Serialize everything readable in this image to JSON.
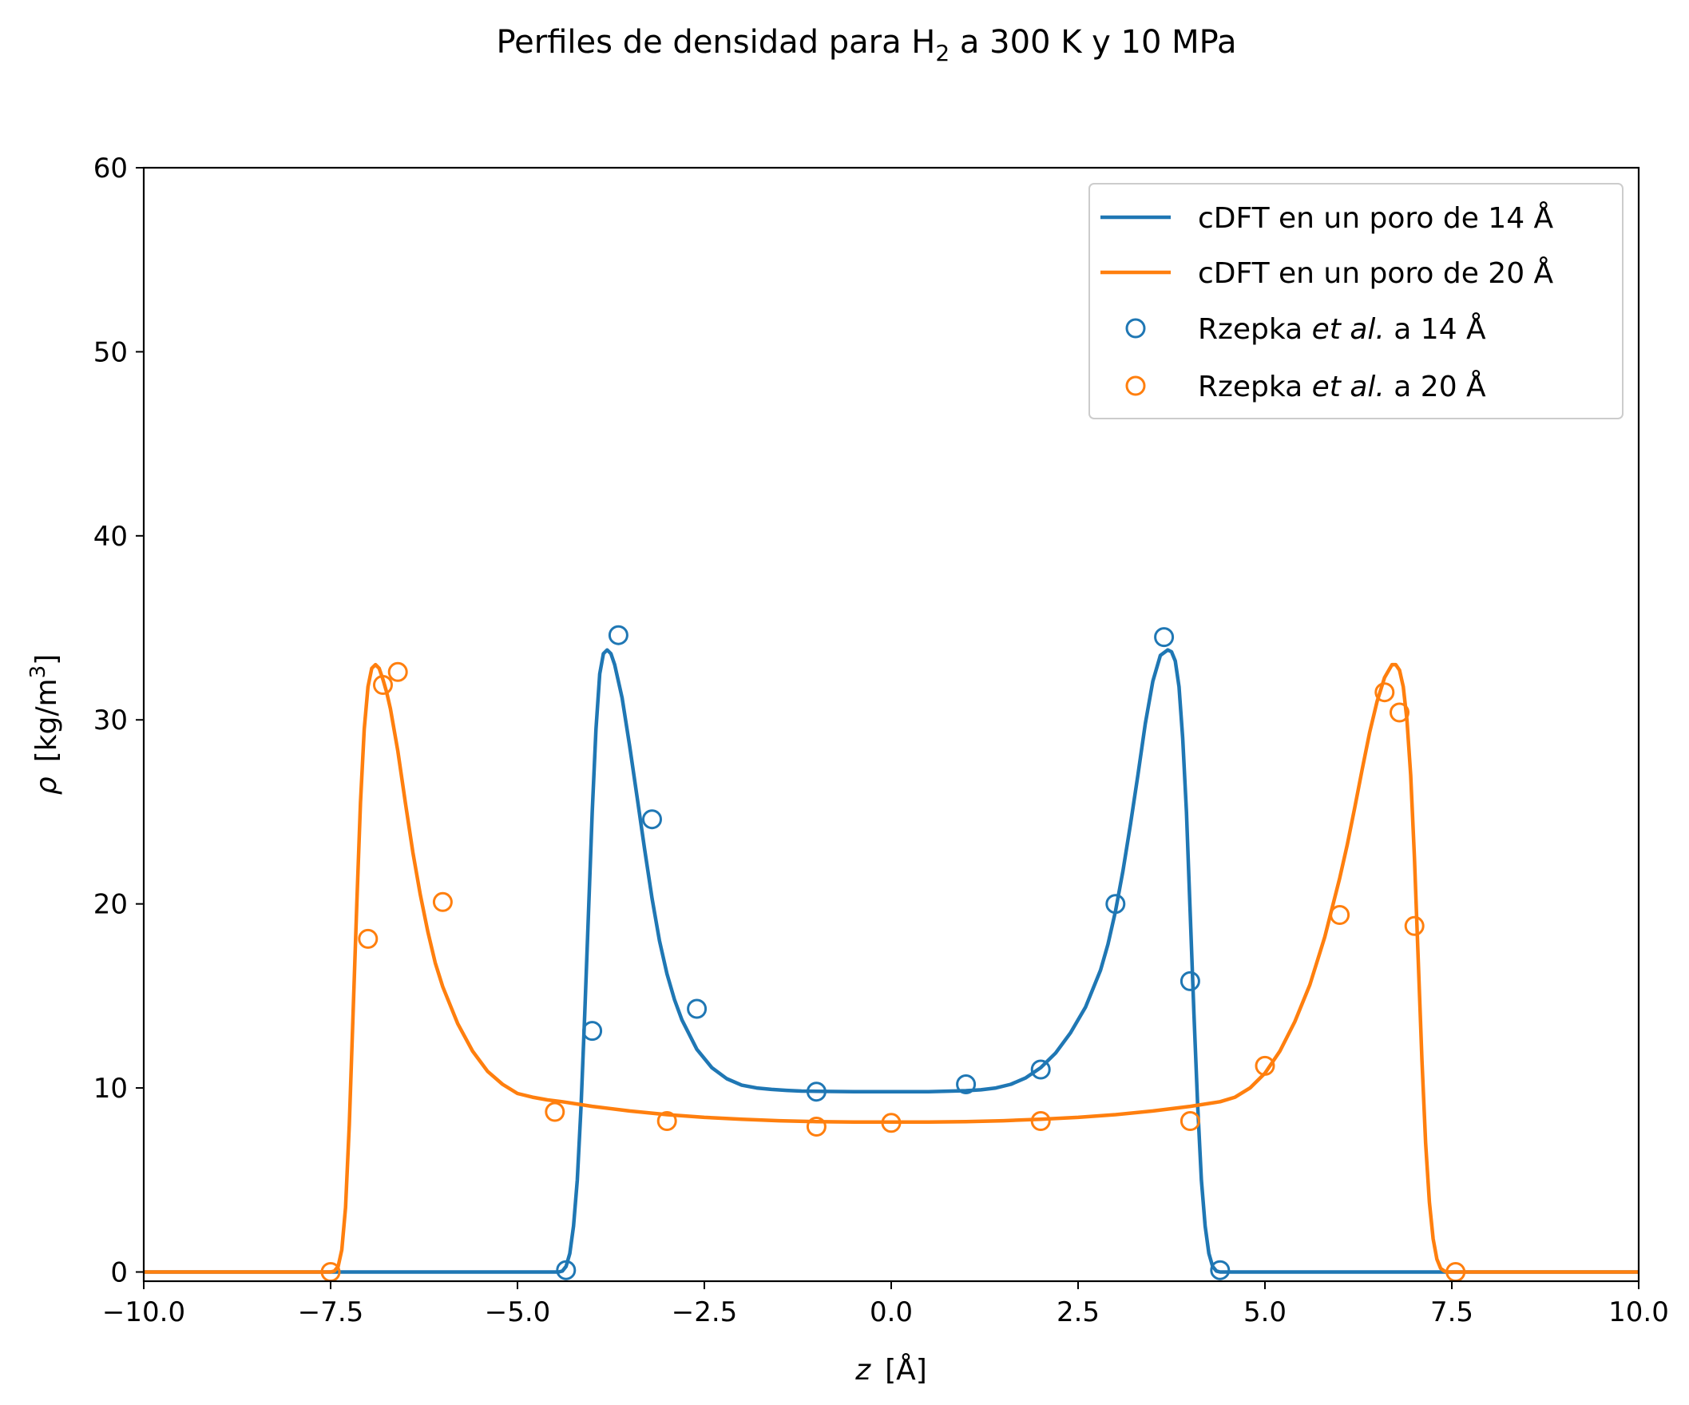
{
  "chart_data": {
    "type": "line",
    "title_main": "Perfiles de densidad para H",
    "title_sub": "2",
    "title_rest": " a 300 K y 10 MPa",
    "xlabel_var": "z",
    "xlabel_unit": "[Å]",
    "ylabel_var": "ρ",
    "ylabel_unit_a": "[kg/m",
    "ylabel_unit_sup": "3",
    "ylabel_unit_b": "]",
    "xlim": [
      -10,
      10
    ],
    "ylim": [
      -0.5,
      60
    ],
    "xticks": [
      "−10.0",
      "−7.5",
      "−5.0",
      "−2.5",
      "0.0",
      "2.5",
      "5.0",
      "7.5",
      "10.0"
    ],
    "xtick_values": [
      -10,
      -7.5,
      -5,
      -2.5,
      0,
      2.5,
      5,
      7.5,
      10
    ],
    "yticks": [
      "0",
      "10",
      "20",
      "30",
      "40",
      "50",
      "60"
    ],
    "ytick_values": [
      0,
      10,
      20,
      30,
      40,
      50,
      60
    ],
    "grid": false,
    "legend_position": "top-right",
    "series": [
      {
        "name": "cDFT en un poro de 14 Å",
        "kind": "line",
        "color": "#1f77b4",
        "x": [
          -10,
          -4.45,
          -4.4,
          -4.35,
          -4.3,
          -4.25,
          -4.2,
          -4.15,
          -4.1,
          -4.05,
          -4.0,
          -3.95,
          -3.9,
          -3.85,
          -3.8,
          -3.75,
          -3.7,
          -3.6,
          -3.5,
          -3.4,
          -3.3,
          -3.2,
          -3.1,
          -3.0,
          -2.9,
          -2.8,
          -2.6,
          -2.4,
          -2.2,
          -2.0,
          -1.8,
          -1.6,
          -1.4,
          -1.2,
          -1.0,
          -0.5,
          0.0,
          0.5,
          1.0,
          1.2,
          1.4,
          1.6,
          1.8,
          2.0,
          2.2,
          2.4,
          2.6,
          2.8,
          2.9,
          3.0,
          3.1,
          3.2,
          3.3,
          3.4,
          3.5,
          3.6,
          3.7,
          3.75,
          3.8,
          3.85,
          3.9,
          3.95,
          4.0,
          4.05,
          4.1,
          4.15,
          4.2,
          4.25,
          4.3,
          4.35,
          4.4,
          4.45,
          10
        ],
        "y": [
          0,
          0,
          0.05,
          0.3,
          1.0,
          2.5,
          5.0,
          9.0,
          14.0,
          19.5,
          25.0,
          29.5,
          32.5,
          33.6,
          33.8,
          33.6,
          33.0,
          31.2,
          28.6,
          25.8,
          23.0,
          20.3,
          18.0,
          16.2,
          14.8,
          13.7,
          12.1,
          11.1,
          10.5,
          10.15,
          10.0,
          9.92,
          9.87,
          9.83,
          9.82,
          9.8,
          9.8,
          9.8,
          9.85,
          9.9,
          10.0,
          10.2,
          10.55,
          11.1,
          11.9,
          13.0,
          14.4,
          16.4,
          17.8,
          19.6,
          21.8,
          24.3,
          27.0,
          29.8,
          32.1,
          33.5,
          33.8,
          33.7,
          33.2,
          31.8,
          29.0,
          25.0,
          19.5,
          14.0,
          9.0,
          5.0,
          2.5,
          1.0,
          0.3,
          0.05,
          0,
          0,
          0
        ]
      },
      {
        "name": "cDFT en un poro de 20 Å",
        "kind": "line",
        "color": "#ff7f0e",
        "x": [
          -10,
          -7.5,
          -7.45,
          -7.4,
          -7.35,
          -7.3,
          -7.25,
          -7.2,
          -7.15,
          -7.1,
          -7.05,
          -7.0,
          -6.95,
          -6.9,
          -6.85,
          -6.8,
          -6.75,
          -6.7,
          -6.6,
          -6.5,
          -6.4,
          -6.3,
          -6.2,
          -6.1,
          -6.0,
          -5.8,
          -5.6,
          -5.4,
          -5.2,
          -5.0,
          -4.8,
          -4.6,
          -4.4,
          -4.0,
          -3.5,
          -3.0,
          -2.5,
          -2.0,
          -1.5,
          -1.0,
          -0.5,
          0.0,
          0.5,
          1.0,
          1.5,
          2.0,
          2.5,
          3.0,
          3.5,
          4.0,
          4.4,
          4.6,
          4.8,
          5.0,
          5.2,
          5.4,
          5.6,
          5.8,
          6.0,
          6.1,
          6.2,
          6.3,
          6.4,
          6.5,
          6.6,
          6.7,
          6.75,
          6.8,
          6.85,
          6.9,
          6.95,
          7.0,
          7.05,
          7.1,
          7.15,
          7.2,
          7.25,
          7.3,
          7.35,
          7.4,
          7.45,
          7.5,
          10
        ],
        "y": [
          0,
          0,
          0.05,
          0.3,
          1.2,
          3.5,
          8.0,
          14.0,
          20.0,
          25.5,
          29.5,
          31.8,
          32.8,
          33.0,
          32.8,
          32.2,
          31.5,
          30.6,
          28.3,
          25.5,
          22.8,
          20.5,
          18.5,
          16.8,
          15.5,
          13.5,
          12.0,
          10.9,
          10.2,
          9.7,
          9.5,
          9.35,
          9.25,
          9.0,
          8.75,
          8.55,
          8.4,
          8.3,
          8.22,
          8.17,
          8.15,
          8.15,
          8.15,
          8.17,
          8.22,
          8.3,
          8.4,
          8.55,
          8.75,
          9.0,
          9.25,
          9.5,
          10.0,
          10.8,
          12.0,
          13.6,
          15.6,
          18.2,
          21.4,
          23.2,
          25.2,
          27.3,
          29.3,
          31.0,
          32.3,
          33.0,
          33.0,
          32.7,
          31.8,
          30.0,
          27.0,
          22.5,
          17.0,
          11.5,
          7.0,
          3.8,
          1.8,
          0.7,
          0.2,
          0.05,
          0,
          0,
          0
        ]
      },
      {
        "name_pre": "Rzepka ",
        "name_ital": "et al.",
        "name_post": " a 14 Å",
        "kind": "marker",
        "color": "#1f77b4",
        "x": [
          -4.35,
          -4.0,
          -3.65,
          -3.2,
          -2.6,
          -1.0,
          1.0,
          2.0,
          3.0,
          3.65,
          4.0,
          4.4
        ],
        "y": [
          0.1,
          13.1,
          34.6,
          24.6,
          14.3,
          9.8,
          10.2,
          11.0,
          20.0,
          34.5,
          15.8,
          0.1
        ]
      },
      {
        "name_pre": "Rzepka ",
        "name_ital": "et al.",
        "name_post": " a 20 Å",
        "kind": "marker",
        "color": "#ff7f0e",
        "x": [
          -7.5,
          -7.0,
          -6.8,
          -6.6,
          -6.0,
          -4.5,
          -3.0,
          -1.0,
          0.0,
          2.0,
          4.0,
          5.0,
          6.0,
          6.6,
          6.8,
          7.0,
          7.55
        ],
        "y": [
          0.0,
          18.1,
          31.9,
          32.6,
          20.1,
          8.7,
          8.2,
          7.9,
          8.1,
          8.2,
          8.2,
          11.2,
          19.4,
          31.5,
          30.4,
          18.8,
          0.0
        ]
      }
    ]
  }
}
